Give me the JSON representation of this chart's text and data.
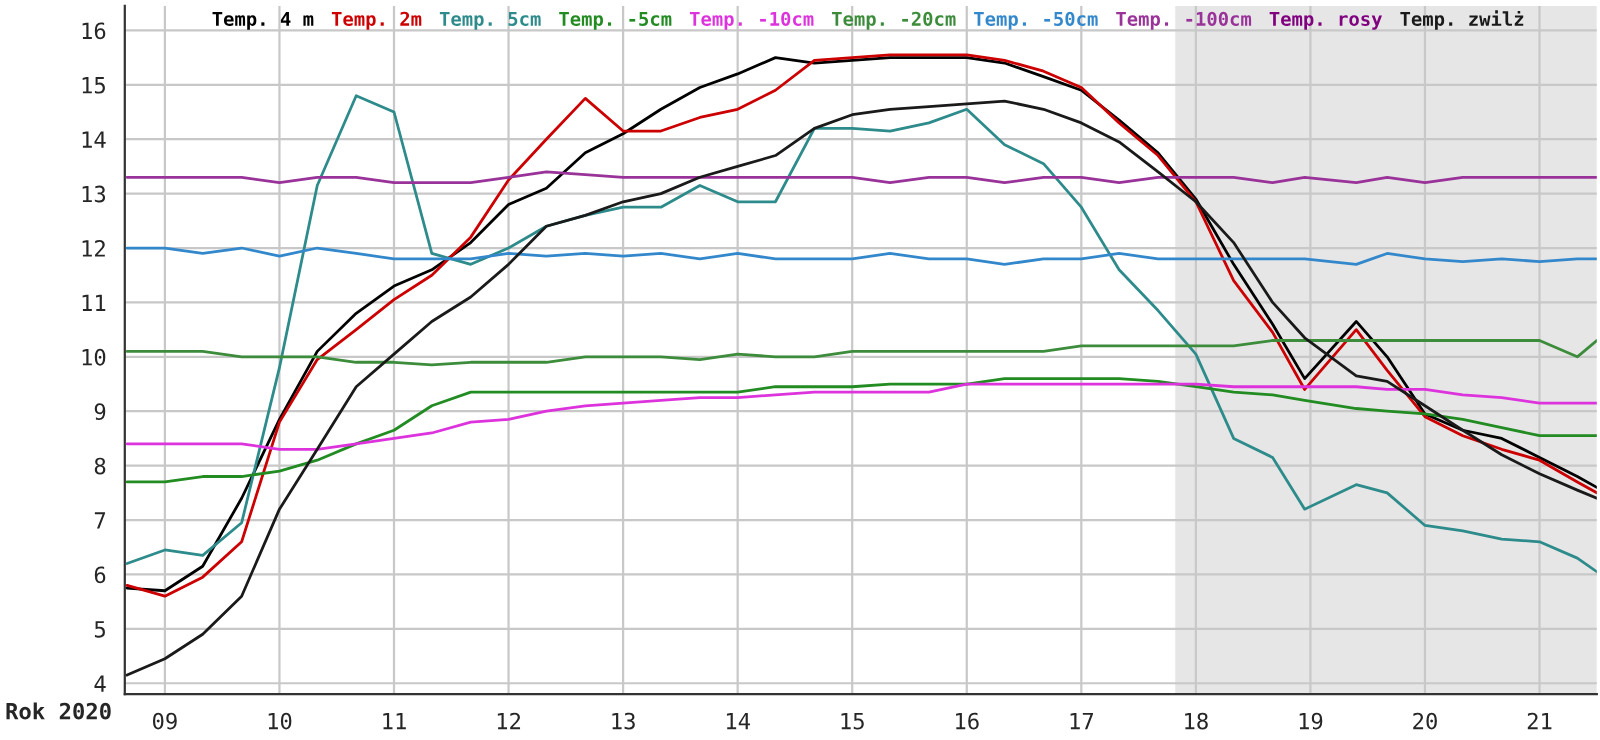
{
  "chart_data": {
    "type": "line",
    "x": [
      8.67,
      9.0,
      9.33,
      9.67,
      10.0,
      10.33,
      10.67,
      11.0,
      11.33,
      11.67,
      12.0,
      12.33,
      12.67,
      13.0,
      13.33,
      13.67,
      14.0,
      14.33,
      14.67,
      15.0,
      15.33,
      15.67,
      16.0,
      16.33,
      16.67,
      17.0,
      17.33,
      17.67,
      18.0,
      18.33,
      18.67,
      18.95,
      19.4,
      19.67,
      20.0,
      20.33,
      20.67,
      21.0,
      21.33,
      21.5
    ],
    "series": [
      {
        "name": "Temp. 4 m",
        "color": "#000000",
        "values": [
          5.75,
          5.7,
          6.15,
          7.4,
          8.85,
          10.1,
          10.8,
          11.3,
          11.6,
          12.1,
          12.8,
          13.1,
          13.75,
          14.1,
          14.55,
          14.95,
          15.2,
          15.5,
          15.4,
          15.45,
          15.5,
          15.5,
          15.5,
          15.4,
          15.15,
          14.9,
          14.35,
          13.75,
          12.9,
          11.7,
          10.6,
          9.6,
          10.65,
          10.0,
          8.95,
          8.65,
          8.5,
          8.15,
          7.8,
          7.6
        ]
      },
      {
        "name": "Temp. 2m",
        "color": "#cc0000",
        "values": [
          5.8,
          5.6,
          5.95,
          6.6,
          8.8,
          9.95,
          10.5,
          11.05,
          11.5,
          12.2,
          13.25,
          14.0,
          14.75,
          14.15,
          14.15,
          14.4,
          14.55,
          14.9,
          15.45,
          15.5,
          15.55,
          15.55,
          15.55,
          15.45,
          15.25,
          14.95,
          14.3,
          13.7,
          12.85,
          11.4,
          10.45,
          9.4,
          10.5,
          9.75,
          8.9,
          8.55,
          8.3,
          8.1,
          7.7,
          7.5
        ]
      },
      {
        "name": "Temp. 5cm",
        "color": "#2e8b8b",
        "values": [
          6.2,
          6.45,
          6.35,
          6.95,
          9.8,
          13.15,
          14.8,
          14.5,
          11.9,
          11.7,
          12.0,
          12.4,
          12.6,
          12.75,
          12.75,
          13.15,
          12.85,
          12.85,
          14.2,
          14.2,
          14.15,
          14.3,
          14.55,
          13.9,
          13.55,
          12.75,
          11.6,
          10.85,
          10.05,
          8.5,
          8.15,
          7.2,
          7.65,
          7.5,
          6.9,
          6.8,
          6.65,
          6.6,
          6.3,
          6.05
        ]
      },
      {
        "name": "Temp. -5cm",
        "color": "#228b22",
        "values": [
          7.7,
          7.7,
          7.8,
          7.8,
          7.9,
          8.1,
          8.4,
          8.65,
          9.1,
          9.35,
          9.35,
          9.35,
          9.35,
          9.35,
          9.35,
          9.35,
          9.35,
          9.45,
          9.45,
          9.45,
          9.5,
          9.5,
          9.5,
          9.6,
          9.6,
          9.6,
          9.6,
          9.55,
          9.45,
          9.35,
          9.3,
          9.2,
          9.05,
          9.0,
          8.95,
          8.85,
          8.7,
          8.55,
          8.55,
          8.55
        ]
      },
      {
        "name": "Temp. -10cm",
        "color": "#dd33dd",
        "values": [
          8.4,
          8.4,
          8.4,
          8.4,
          8.3,
          8.3,
          8.4,
          8.5,
          8.6,
          8.8,
          8.85,
          9.0,
          9.1,
          9.15,
          9.2,
          9.25,
          9.25,
          9.3,
          9.35,
          9.35,
          9.35,
          9.35,
          9.5,
          9.5,
          9.5,
          9.5,
          9.5,
          9.5,
          9.5,
          9.45,
          9.45,
          9.45,
          9.45,
          9.4,
          9.4,
          9.3,
          9.25,
          9.15,
          9.15,
          9.15
        ]
      },
      {
        "name": "Temp. -20cm",
        "color": "#3c8c3c",
        "values": [
          10.1,
          10.1,
          10.1,
          10.0,
          10.0,
          10.0,
          9.9,
          9.9,
          9.85,
          9.9,
          9.9,
          9.9,
          10.0,
          10.0,
          10.0,
          9.95,
          10.05,
          10.0,
          10.0,
          10.1,
          10.1,
          10.1,
          10.1,
          10.1,
          10.1,
          10.2,
          10.2,
          10.2,
          10.2,
          10.2,
          10.3,
          10.3,
          10.3,
          10.3,
          10.3,
          10.3,
          10.3,
          10.3,
          10.0,
          10.3
        ]
      },
      {
        "name": "Temp. -50cm",
        "color": "#3388cc",
        "values": [
          12.0,
          12.0,
          11.9,
          12.0,
          11.85,
          12.0,
          11.9,
          11.8,
          11.8,
          11.8,
          11.9,
          11.85,
          11.9,
          11.85,
          11.9,
          11.8,
          11.9,
          11.8,
          11.8,
          11.8,
          11.9,
          11.8,
          11.8,
          11.7,
          11.8,
          11.8,
          11.9,
          11.8,
          11.8,
          11.8,
          11.8,
          11.8,
          11.7,
          11.9,
          11.8,
          11.75,
          11.8,
          11.75,
          11.8,
          11.8
        ]
      },
      {
        "name": "Temp. -100cm",
        "color": "#993399",
        "values": [
          13.3,
          13.3,
          13.3,
          13.3,
          13.2,
          13.3,
          13.3,
          13.2,
          13.2,
          13.2,
          13.3,
          13.4,
          13.35,
          13.3,
          13.3,
          13.3,
          13.3,
          13.3,
          13.3,
          13.3,
          13.2,
          13.3,
          13.3,
          13.2,
          13.3,
          13.3,
          13.2,
          13.3,
          13.3,
          13.3,
          13.2,
          13.3,
          13.2,
          13.3,
          13.2,
          13.3,
          13.3,
          13.3,
          13.3,
          13.3
        ]
      },
      {
        "name": "Temp. rosy",
        "color": "#800080",
        "values": [
          null,
          null,
          null,
          null,
          null,
          null,
          null,
          null,
          null,
          null,
          null,
          null,
          null,
          null,
          null,
          null,
          null,
          null,
          null,
          null,
          null,
          null,
          null,
          null,
          null,
          null,
          null,
          null,
          null,
          null,
          null,
          null,
          null,
          null,
          null,
          null,
          null,
          null,
          null,
          null
        ]
      },
      {
        "name": "Temp. zwilż",
        "color": "#1a1a1a",
        "values": [
          4.15,
          4.45,
          4.9,
          5.6,
          7.2,
          8.3,
          9.45,
          10.05,
          10.65,
          11.1,
          11.7,
          12.4,
          12.6,
          12.85,
          13.0,
          13.3,
          13.5,
          13.7,
          14.2,
          14.45,
          14.55,
          14.6,
          14.65,
          14.7,
          14.55,
          14.3,
          13.95,
          13.4,
          12.85,
          12.1,
          11.0,
          10.35,
          9.65,
          9.55,
          9.1,
          8.65,
          8.2,
          7.85,
          7.55,
          7.4
        ]
      }
    ],
    "xlim": [
      8.65,
      21.5
    ],
    "ylim": [
      3.8,
      16.45
    ],
    "xticks": [
      {
        "value": 9,
        "label": "09"
      },
      10,
      11,
      12,
      13,
      14,
      15,
      16,
      17,
      18,
      19,
      20,
      21
    ],
    "yticks": [
      4,
      5,
      6,
      7,
      8,
      9,
      10,
      11,
      12,
      13,
      14,
      15,
      16
    ],
    "xlabel": "Rok 2020",
    "bands": [
      {
        "axis": "x",
        "from": 17.82,
        "to": 21.5,
        "color": "#e6e6e6"
      }
    ],
    "grid": true,
    "legend": "top",
    "marker": "none",
    "line_style": "solid"
  }
}
